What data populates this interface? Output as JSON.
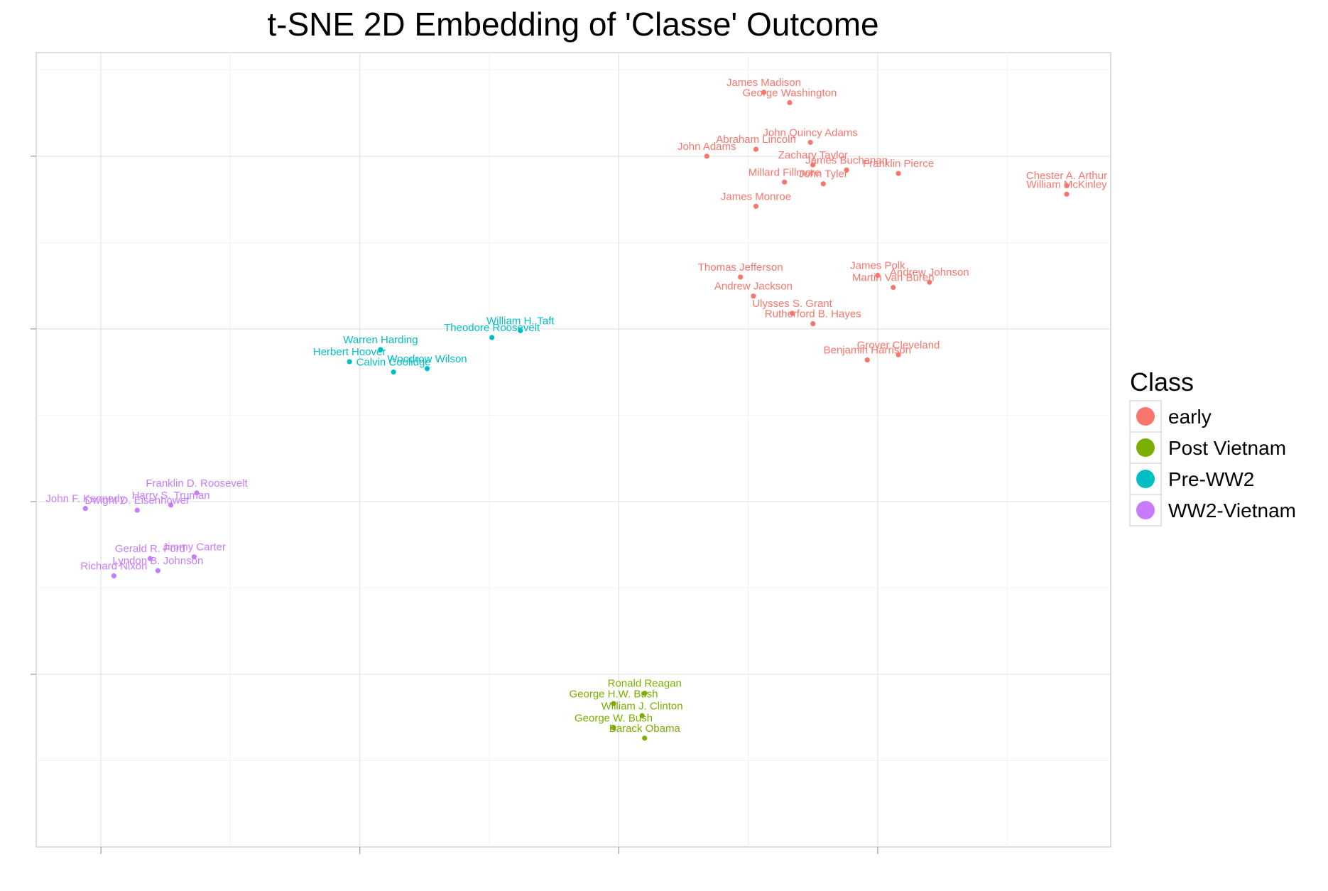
{
  "chart_data": {
    "type": "scatter",
    "title": "t-SNE 2D Embedding of 'Classe' Outcome",
    "xlabel": "",
    "ylabel": "",
    "xlim": [
      -0.25,
      3.9
    ],
    "ylim": [
      -3.0,
      1.6
    ],
    "x_major": [
      0,
      1,
      2,
      3
    ],
    "y_major": [
      -2,
      -1,
      0,
      1
    ],
    "grid": true,
    "tick_labels_shown": false,
    "legend_position": "right",
    "legend_title": "Class",
    "colors": {
      "early": "#F8766D",
      "Post Vietnam": "#7CAE00",
      "Pre-WW2": "#00BFC4",
      "WW2-Vietnam": "#C77CFF"
    },
    "series": [
      {
        "name": "early",
        "color": "#F8766D",
        "points": [
          {
            "label": "James Madison",
            "x": 2.56,
            "y": 1.37
          },
          {
            "label": "George Washington",
            "x": 2.66,
            "y": 1.31
          },
          {
            "label": "John Quincy Adams",
            "x": 2.74,
            "y": 1.08
          },
          {
            "label": "Abraham Lincoln",
            "x": 2.53,
            "y": 1.04
          },
          {
            "label": "John Adams",
            "x": 2.34,
            "y": 1.0
          },
          {
            "label": "Zachary Taylor",
            "x": 2.75,
            "y": 0.95
          },
          {
            "label": "James Buchanan",
            "x": 2.88,
            "y": 0.92
          },
          {
            "label": "Franklin Pierce",
            "x": 3.08,
            "y": 0.9
          },
          {
            "label": "Millard Fillmore",
            "x": 2.64,
            "y": 0.85
          },
          {
            "label": "John Tyler",
            "x": 2.79,
            "y": 0.84
          },
          {
            "label": "James Monroe",
            "x": 2.53,
            "y": 0.71
          },
          {
            "label": "Chester A. Arthur",
            "x": 3.73,
            "y": 0.83
          },
          {
            "label": "William McKinley",
            "x": 3.73,
            "y": 0.78
          },
          {
            "label": "Thomas Jefferson",
            "x": 2.47,
            "y": 0.3
          },
          {
            "label": "James Polk",
            "x": 3.0,
            "y": 0.31
          },
          {
            "label": "Andrew Johnson",
            "x": 3.2,
            "y": 0.27
          },
          {
            "label": "Martin Van Buren",
            "x": 3.06,
            "y": 0.24
          },
          {
            "label": "Andrew Jackson",
            "x": 2.52,
            "y": 0.19
          },
          {
            "label": "Ulysses S. Grant",
            "x": 2.67,
            "y": 0.09
          },
          {
            "label": "Rutherford B. Hayes",
            "x": 2.75,
            "y": 0.03
          },
          {
            "label": "Grover Cleveland",
            "x": 3.08,
            "y": -0.15
          },
          {
            "label": "Benjamin Harrison",
            "x": 2.96,
            "y": -0.18
          }
        ]
      },
      {
        "name": "Post Vietnam",
        "color": "#7CAE00",
        "points": [
          {
            "label": "Ronald Reagan",
            "x": 2.1,
            "y": -2.11
          },
          {
            "label": "George H.W. Bush",
            "x": 1.98,
            "y": -2.17
          },
          {
            "label": "William J. Clinton",
            "x": 2.09,
            "y": -2.24
          },
          {
            "label": "George W. Bush",
            "x": 1.98,
            "y": -2.31
          },
          {
            "label": "Barack Obama",
            "x": 2.1,
            "y": -2.37
          }
        ]
      },
      {
        "name": "Pre-WW2",
        "color": "#00BFC4",
        "points": [
          {
            "label": "William H. Taft",
            "x": 1.62,
            "y": -0.01
          },
          {
            "label": "Theodore Roosevelt",
            "x": 1.51,
            "y": -0.05
          },
          {
            "label": "Warren Harding",
            "x": 1.08,
            "y": -0.12
          },
          {
            "label": "Herbert Hoover",
            "x": 0.96,
            "y": -0.19
          },
          {
            "label": "Woodrow Wilson",
            "x": 1.26,
            "y": -0.23
          },
          {
            "label": "Calvin Coolidge",
            "x": 1.13,
            "y": -0.25
          }
        ]
      },
      {
        "name": "WW2-Vietnam",
        "color": "#C77CFF",
        "points": [
          {
            "label": "Franklin D. Roosevelt",
            "x": 0.37,
            "y": -0.95
          },
          {
            "label": "Harry S. Truman",
            "x": 0.27,
            "y": -1.02
          },
          {
            "label": "John F. Kennedy",
            "x": -0.06,
            "y": -1.04
          },
          {
            "label": "Dwight D. Eisenhower",
            "x": 0.14,
            "y": -1.05
          },
          {
            "label": "Jimmy Carter",
            "x": 0.36,
            "y": -1.32
          },
          {
            "label": "Gerald R. Ford",
            "x": 0.19,
            "y": -1.33
          },
          {
            "label": "Lyndon B. Johnson",
            "x": 0.22,
            "y": -1.4
          },
          {
            "label": "Richard Nixon",
            "x": 0.05,
            "y": -1.43
          }
        ]
      }
    ]
  }
}
